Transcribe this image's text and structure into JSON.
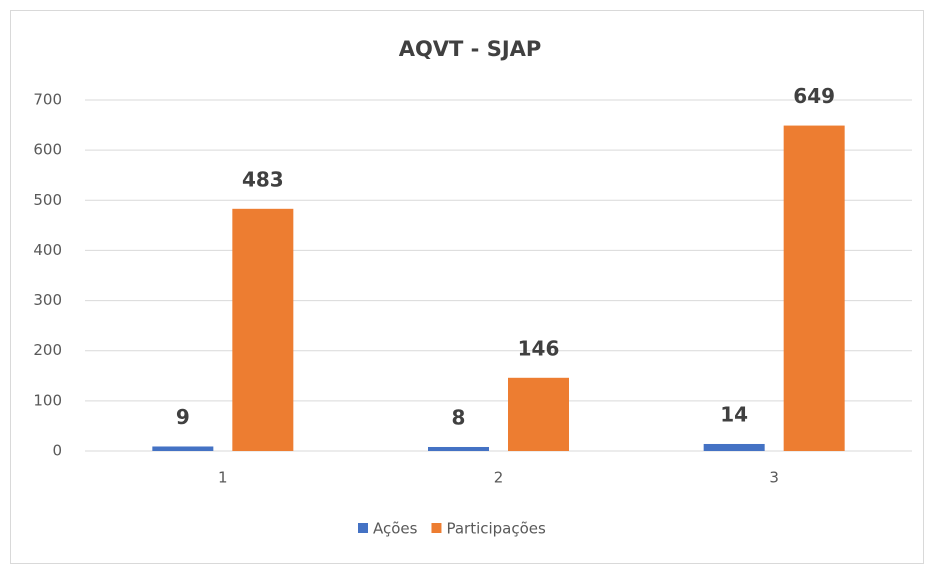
{
  "chart_data": {
    "type": "bar",
    "title": "AQVT - SJAP",
    "categories": [
      "1",
      "2",
      "3"
    ],
    "series": [
      {
        "name": "Ações",
        "color": "#4472c4",
        "values": [
          9,
          8,
          14
        ]
      },
      {
        "name": "Participações",
        "color": "#ed7d31",
        "values": [
          483,
          146,
          649
        ]
      }
    ],
    "ylim": [
      0,
      700
    ],
    "yticks": [
      0,
      100,
      200,
      300,
      400,
      500,
      600,
      700
    ],
    "grid": true,
    "legend": "bottom"
  }
}
